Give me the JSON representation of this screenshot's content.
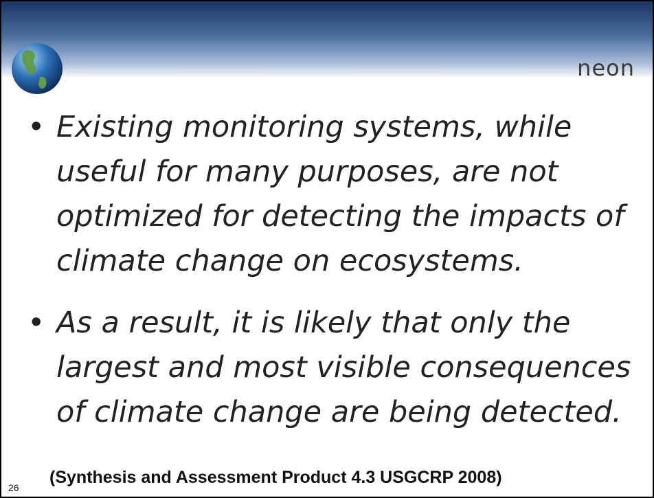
{
  "logo": "neon",
  "bullets": [
    {
      "lines": [
        "Existing monitoring systems, while",
        "useful for many purposes, are not",
        "optimized for detecting the impacts of",
        "climate change on ecosystems."
      ]
    },
    {
      "lines": [
        "As a result, it is likely that only the",
        "largest and most visible consequences",
        "of climate change are being detected."
      ]
    }
  ],
  "footer": "(Synthesis and Assessment Product 4.3 USGCRP 2008)",
  "slide_number": "26"
}
